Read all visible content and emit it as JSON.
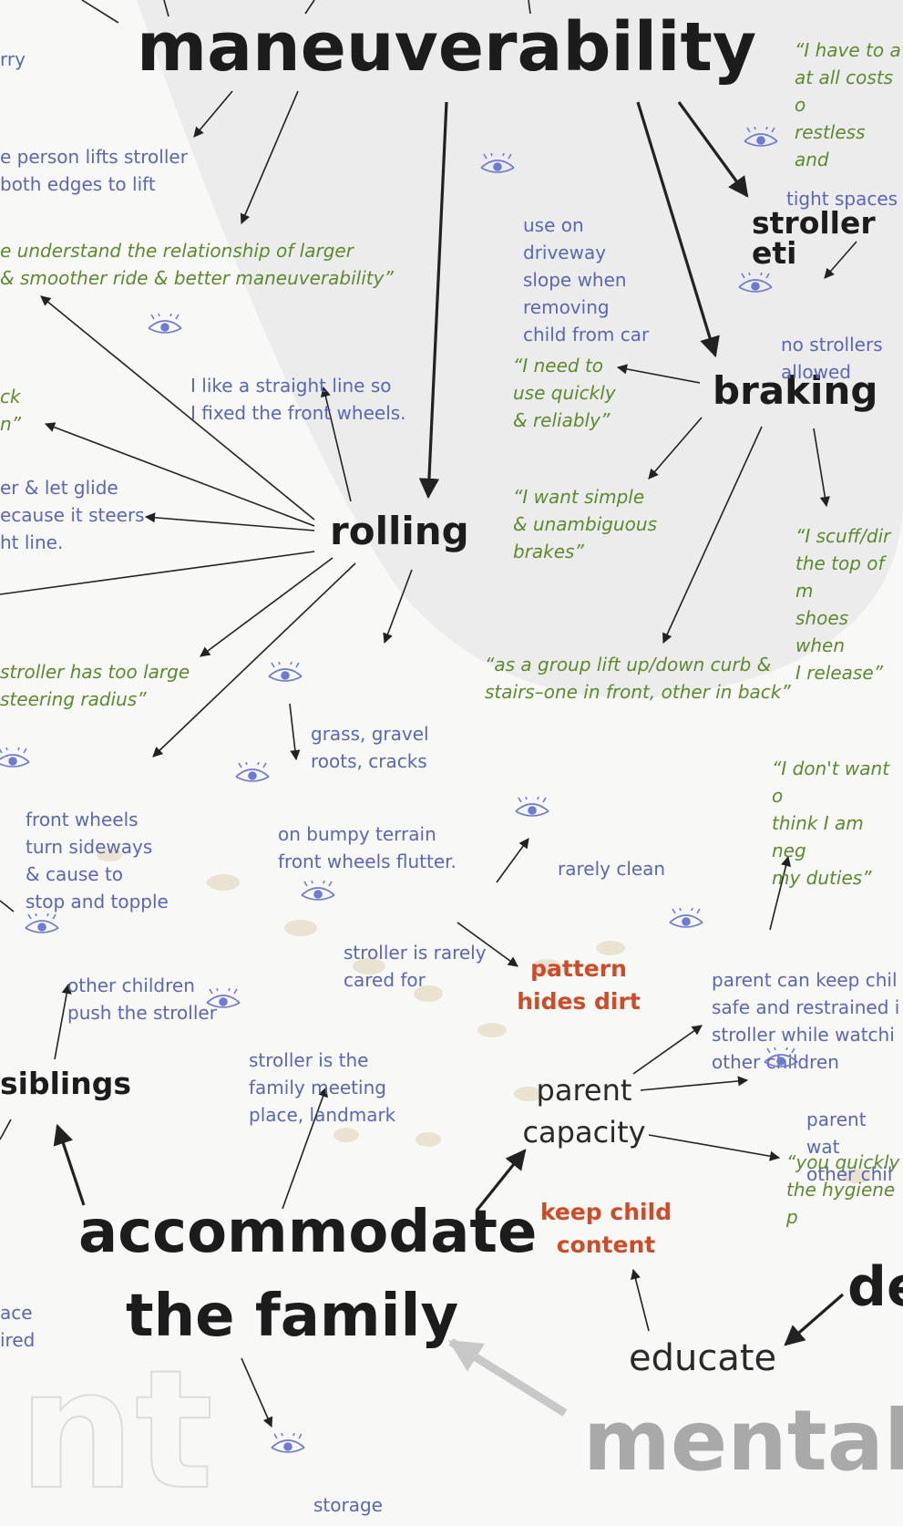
{
  "hubs": {
    "maneuverability": "maneuverability",
    "rolling": "rolling",
    "braking": "braking",
    "stroller_etiquette": "stroller eti",
    "accommodate": "accommodate",
    "the_family": "the family",
    "siblings": "siblings",
    "parent_capacity": "parent\ncapacity",
    "educate": "educate",
    "de": "de",
    "mental": "mental",
    "nt": "nt"
  },
  "red_labels": {
    "pattern_hides_dirt": "pattern\nhides dirt",
    "keep_child_content": "keep child\ncontent"
  },
  "observations": {
    "lifts_stroller": "e person lifts stroller\n both edges to lift",
    "driveway": "use on\ndriveway\nslope when\nremoving\nchild from car",
    "tight_spaces": "tight spaces",
    "no_strollers": "no strollers\nallowed",
    "straight_line": "I like a straight line so\nI fixed the front wheels.",
    "glide": "er & let glide\necause it steers\nht line.",
    "grass": "grass, gravel\nroots, cracks",
    "front_wheels": "front wheels\nturn sideways\n& cause to\nstop and topple",
    "bumpy": "on bumpy terrain\nfront wheels flutter.",
    "rarely_clean": "rarely clean",
    "rarely_cared": "stroller is rarely\ncared for",
    "other_children": "other children\npush the stroller",
    "meeting_place": "stroller is the\nfamily meeting\nplace, landmark",
    "keep_child_safe": "parent can keep chil\nsafe and restrained i\nstroller while watchi\nother children",
    "parent_watch": "parent wat\nother chil",
    "storage": "storage",
    "left_edge_top": "rry",
    "left_edge_bottom": "ace\nired"
  },
  "quotes": {
    "have_to": "“I have to a\nat all costs o\nrestless and",
    "larger_wheels": "e understand the relationship of larger\n& smoother ride & better maneuverability”",
    "need_to_use": "“I need to\nuse quickly\n& reliably”",
    "simple_brakes": "“I want simple\n& unambiguous\nbrakes”",
    "scuff": "“I scuff/dir\nthe top of m\nshoes when\nI release”",
    "large_radius": " stroller has too large\n steering radius”",
    "group_lift": "“as a group lift up/down curb &\nstairs–one in front, other in back”",
    "dont_want": "“I don't want o\nthink I am neg\nmy duties”",
    "hygiene": "“you quickly\nthe hygiene p",
    "left_ck": "ck\nn”"
  },
  "colors": {
    "observation_blue": "#5b66b6",
    "quote_green": "#5d8a30",
    "category_red": "#cf4a26",
    "hub_black": "#1c1c1c"
  },
  "icon_name": "eye-icon"
}
